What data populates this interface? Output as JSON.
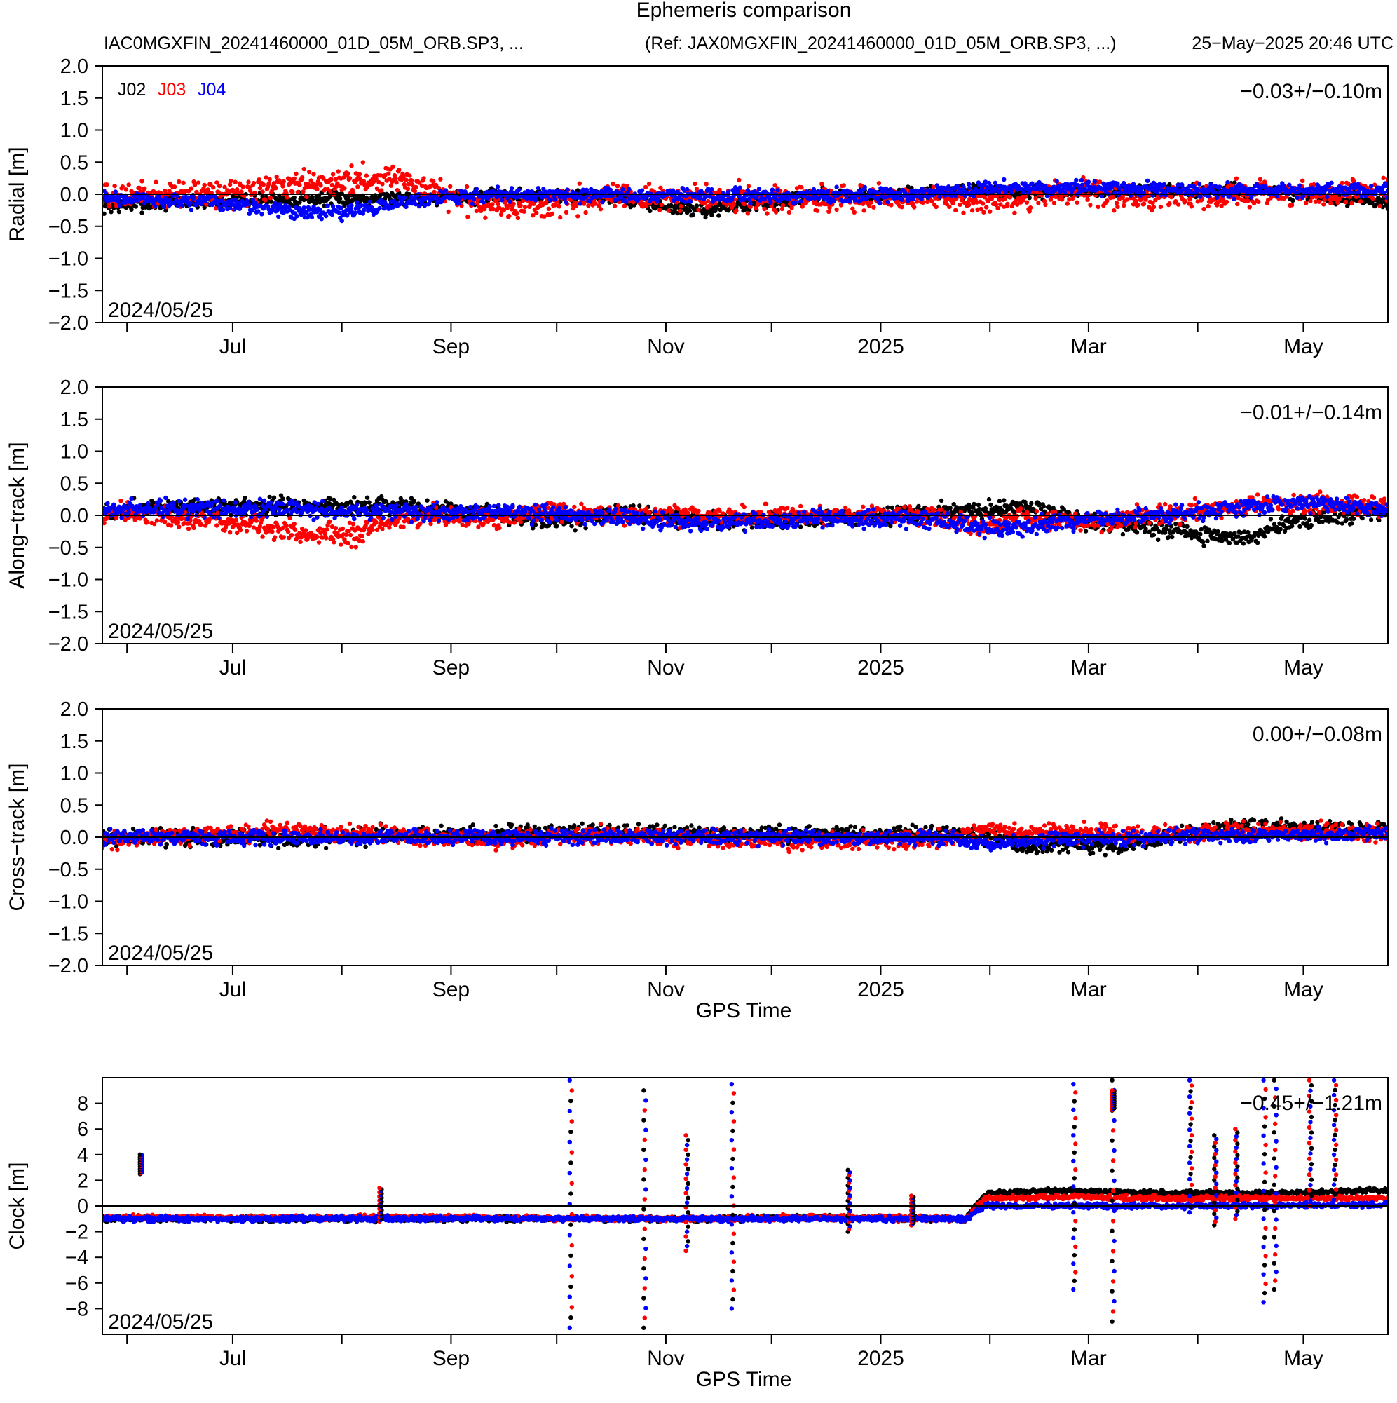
{
  "header": {
    "title": "Ephemeris comparison",
    "left_file": "IAC0MGXFIN_20241460000_01D_05M_ORB.SP3, ...",
    "ref_file": "(Ref: JAX0MGXFIN_20241460000_01D_05M_ORB.SP3, ...)",
    "generated": "25−May−2025 20:46 UTC"
  },
  "legend": [
    {
      "name": "J02",
      "color": "#000000"
    },
    {
      "name": "J03",
      "color": "#ff0000"
    },
    {
      "name": "J04",
      "color": "#0000ff"
    }
  ],
  "xaxis": {
    "xlabel": "GPS Time",
    "range": [
      "2024-05-25",
      "2025-05-25"
    ],
    "tick_labels": [
      "Jul",
      "Sep",
      "Nov",
      "2025",
      "Mar",
      "May"
    ],
    "label_dates": [
      "2024-07-01",
      "2024-09-01",
      "2024-11-01",
      "2025-01-01",
      "2025-03-01",
      "2025-05-01"
    ],
    "tick_dates": [
      "2024-06-01",
      "2024-07-01",
      "2024-08-01",
      "2024-09-01",
      "2024-10-01",
      "2024-11-01",
      "2024-12-01",
      "2025-01-01",
      "2025-02-01",
      "2025-03-01",
      "2025-04-01",
      "2025-05-01"
    ]
  },
  "chart_data": [
    {
      "type": "scatter",
      "ylabel": "Radial [m]",
      "ylim": [
        -2.0,
        2.0
      ],
      "yticks": [
        -2.0,
        -1.5,
        -1.0,
        -0.5,
        0.0,
        0.5,
        1.0,
        1.5,
        2.0
      ],
      "ytick_labels": [
        "−2.0",
        "−1.5",
        "−1.0",
        "−0.5",
        "0.0",
        "0.5",
        "1.0",
        "1.5",
        "2.0"
      ],
      "stat": "−0.03+/−0.10m",
      "start_label": "2024/05/25",
      "legend": true,
      "series": [
        {
          "name": "J02",
          "color": "#000000",
          "x": [
            "2024-05-25",
            "2024-06-15",
            "2024-07-15",
            "2024-08-15",
            "2024-09-15",
            "2024-10-15",
            "2024-11-01",
            "2024-11-10",
            "2024-11-20",
            "2024-12-15",
            "2025-01-15",
            "2025-02-15",
            "2025-03-15",
            "2025-04-15",
            "2025-05-01",
            "2025-05-10",
            "2025-05-24"
          ],
          "y": [
            -0.2,
            -0.12,
            -0.08,
            -0.05,
            -0.03,
            -0.02,
            -0.2,
            -0.25,
            -0.2,
            -0.02,
            0.02,
            0.03,
            0.05,
            0.05,
            0.0,
            -0.08,
            -0.1
          ],
          "spread": 0.08
        },
        {
          "name": "J03",
          "color": "#ff0000",
          "x": [
            "2024-05-25",
            "2024-06-15",
            "2024-07-05",
            "2024-07-20",
            "2024-08-05",
            "2024-08-15",
            "2024-08-25",
            "2024-09-15",
            "2024-10-01",
            "2024-10-20",
            "2024-11-15",
            "2024-12-15",
            "2025-01-15",
            "2025-02-05",
            "2025-02-25",
            "2025-03-15",
            "2025-04-15",
            "2025-05-24"
          ],
          "y": [
            -0.05,
            0.0,
            0.05,
            0.15,
            0.22,
            0.28,
            0.05,
            -0.2,
            -0.15,
            -0.05,
            -0.05,
            -0.05,
            -0.05,
            -0.1,
            0.05,
            -0.05,
            0.0,
            0.05
          ],
          "spread": 0.15
        },
        {
          "name": "J04",
          "color": "#0000ff",
          "x": [
            "2024-05-25",
            "2024-06-15",
            "2024-07-01",
            "2024-07-15",
            "2024-08-01",
            "2024-08-15",
            "2024-09-01",
            "2024-09-15",
            "2024-10-15",
            "2024-11-15",
            "2024-12-15",
            "2025-01-15",
            "2025-02-01",
            "2025-02-15",
            "2025-03-15",
            "2025-04-15",
            "2025-05-24"
          ],
          "y": [
            -0.05,
            -0.1,
            -0.15,
            -0.25,
            -0.3,
            -0.15,
            -0.05,
            0.0,
            -0.02,
            -0.02,
            -0.02,
            0.0,
            0.1,
            0.1,
            0.08,
            0.05,
            0.05
          ],
          "spread": 0.08
        }
      ]
    },
    {
      "type": "scatter",
      "ylabel": "Along−track [m]",
      "ylim": [
        -2.0,
        2.0
      ],
      "yticks": [
        -2.0,
        -1.5,
        -1.0,
        -0.5,
        0.0,
        0.5,
        1.0,
        1.5,
        2.0
      ],
      "ytick_labels": [
        "−2.0",
        "−1.5",
        "−1.0",
        "−0.5",
        "0.0",
        "0.5",
        "1.0",
        "1.5",
        "2.0"
      ],
      "stat": "−0.01+/−0.14m",
      "start_label": "2024/05/25",
      "legend": false,
      "series": [
        {
          "name": "J02",
          "color": "#000000",
          "x": [
            "2024-05-25",
            "2024-06-15",
            "2024-07-15",
            "2024-08-15",
            "2024-09-15",
            "2024-10-01",
            "2024-10-20",
            "2024-11-15",
            "2024-12-15",
            "2025-01-15",
            "2025-02-01",
            "2025-02-15",
            "2025-03-01",
            "2025-03-20",
            "2025-04-01",
            "2025-04-15",
            "2025-05-01",
            "2025-05-24"
          ],
          "y": [
            0.05,
            0.15,
            0.15,
            0.15,
            0.0,
            -0.1,
            0.05,
            -0.1,
            -0.05,
            0.05,
            0.1,
            0.1,
            -0.1,
            -0.2,
            -0.3,
            -0.35,
            -0.05,
            0.05
          ],
          "spread": 0.1
        },
        {
          "name": "J03",
          "color": "#ff0000",
          "x": [
            "2024-05-25",
            "2024-06-20",
            "2024-07-10",
            "2024-07-25",
            "2024-08-05",
            "2024-08-20",
            "2024-09-15",
            "2024-10-01",
            "2024-10-15",
            "2024-11-15",
            "2024-12-15",
            "2025-01-15",
            "2025-02-01",
            "2025-02-10",
            "2025-03-01",
            "2025-04-01",
            "2025-04-20",
            "2025-05-24"
          ],
          "y": [
            0.05,
            -0.05,
            -0.2,
            -0.28,
            -0.3,
            0.0,
            -0.05,
            0.1,
            0.0,
            0.0,
            0.0,
            0.0,
            -0.2,
            -0.05,
            -0.1,
            0.05,
            0.2,
            0.15
          ],
          "spread": 0.12
        },
        {
          "name": "J04",
          "color": "#0000ff",
          "x": [
            "2024-05-25",
            "2024-06-15",
            "2024-07-15",
            "2024-08-15",
            "2024-09-15",
            "2024-10-15",
            "2024-11-01",
            "2024-11-15",
            "2024-12-15",
            "2025-01-15",
            "2025-02-01",
            "2025-02-15",
            "2025-03-01",
            "2025-03-20",
            "2025-04-10",
            "2025-05-01",
            "2025-05-24"
          ],
          "y": [
            0.1,
            0.1,
            0.1,
            0.05,
            0.05,
            0.0,
            -0.1,
            -0.1,
            -0.05,
            -0.05,
            -0.2,
            -0.15,
            -0.05,
            0.0,
            0.1,
            0.2,
            0.1
          ],
          "spread": 0.1
        }
      ]
    },
    {
      "type": "scatter",
      "ylabel": "Cross−track [m]",
      "ylim": [
        -2.0,
        2.0
      ],
      "yticks": [
        -2.0,
        -1.5,
        -1.0,
        -0.5,
        0.0,
        0.5,
        1.0,
        1.5,
        2.0
      ],
      "ytick_labels": [
        "−2.0",
        "−1.5",
        "−1.0",
        "−0.5",
        "0.0",
        "0.5",
        "1.0",
        "1.5",
        "2.0"
      ],
      "stat": "0.00+/−0.08m",
      "start_label": "2024/05/25",
      "xlabel": "GPS Time",
      "legend": false,
      "series": [
        {
          "name": "J02",
          "color": "#000000",
          "x": [
            "2024-05-25",
            "2024-07-15",
            "2024-09-15",
            "2024-10-15",
            "2024-11-15",
            "2024-12-15",
            "2025-01-15",
            "2025-02-01",
            "2025-02-15",
            "2025-03-15",
            "2025-04-10",
            "2025-05-24"
          ],
          "y": [
            0.0,
            0.0,
            0.05,
            0.1,
            0.05,
            0.05,
            0.05,
            0.0,
            -0.15,
            -0.1,
            0.15,
            0.1
          ],
          "spread": 0.1
        },
        {
          "name": "J03",
          "color": "#ff0000",
          "x": [
            "2024-05-25",
            "2024-07-20",
            "2024-08-10",
            "2024-09-15",
            "2024-10-15",
            "2024-11-15",
            "2025-01-15",
            "2025-02-01",
            "2025-03-15",
            "2025-04-15",
            "2025-05-24"
          ],
          "y": [
            -0.05,
            0.1,
            0.05,
            -0.05,
            0.05,
            -0.05,
            -0.05,
            0.1,
            0.05,
            0.1,
            0.05
          ],
          "spread": 0.1
        },
        {
          "name": "J04",
          "color": "#0000ff",
          "x": [
            "2024-05-25",
            "2024-07-15",
            "2024-09-15",
            "2024-11-15",
            "2025-01-15",
            "2025-02-01",
            "2025-02-15",
            "2025-03-15",
            "2025-05-24"
          ],
          "y": [
            0.0,
            0.0,
            0.0,
            0.0,
            0.0,
            -0.1,
            -0.05,
            0.0,
            0.05
          ],
          "spread": 0.08
        }
      ]
    },
    {
      "type": "scatter",
      "ylabel": "Clock [m]",
      "ylim": [
        -10.0,
        10.0
      ],
      "yticks": [
        -8,
        -6,
        -4,
        -2,
        0,
        2,
        4,
        6,
        8
      ],
      "ytick_labels": [
        "−8",
        "−6",
        "−4",
        "−2",
        "0",
        "2",
        "4",
        "6",
        "8"
      ],
      "stat": "−0.45+/−1.21m",
      "start_label": "2024/05/25",
      "xlabel": "GPS Time",
      "legend": false,
      "series": [
        {
          "name": "J02",
          "color": "#000000",
          "x": [
            "2024-05-25",
            "2024-09-01",
            "2024-11-01",
            "2024-11-20",
            "2024-12-10",
            "2025-01-25",
            "2025-01-31",
            "2025-02-20",
            "2025-03-20",
            "2025-04-20",
            "2025-05-24"
          ],
          "y": [
            -1.0,
            -1.0,
            -1.0,
            -1.0,
            -0.9,
            -1.0,
            1.0,
            1.2,
            1.0,
            1.0,
            1.2
          ],
          "spread": 0.15
        },
        {
          "name": "J03",
          "color": "#ff0000",
          "x": [
            "2024-05-25",
            "2024-09-01",
            "2024-11-01",
            "2024-11-20",
            "2024-12-10",
            "2025-01-25",
            "2025-01-31",
            "2025-02-20",
            "2025-03-20",
            "2025-04-20",
            "2025-05-24"
          ],
          "y": [
            -0.9,
            -0.9,
            -1.0,
            -1.0,
            -0.9,
            -1.0,
            0.6,
            0.7,
            0.6,
            0.6,
            0.6
          ],
          "spread": 0.15
        },
        {
          "name": "J04",
          "color": "#0000ff",
          "x": [
            "2024-05-25",
            "2024-09-01",
            "2024-11-01",
            "2024-11-20",
            "2024-12-10",
            "2025-01-25",
            "2025-01-31",
            "2025-02-20",
            "2025-03-20",
            "2025-04-20",
            "2025-05-24"
          ],
          "y": [
            -1.0,
            -1.0,
            -1.0,
            -1.0,
            -1.0,
            -1.0,
            0.0,
            0.0,
            0.0,
            0.0,
            0.1
          ],
          "spread": 0.15
        }
      ],
      "excursions": [
        {
          "date": "2024-06-05",
          "from": 2.5,
          "to": 4.0
        },
        {
          "date": "2024-08-12",
          "from": -1.2,
          "to": 1.4
        },
        {
          "date": "2024-10-05",
          "from": -9.5,
          "to": 9.8
        },
        {
          "date": "2024-10-26",
          "from": -9.5,
          "to": 9.0
        },
        {
          "date": "2024-11-07",
          "from": -3.5,
          "to": 5.5
        },
        {
          "date": "2024-11-20",
          "from": -8.0,
          "to": 9.5
        },
        {
          "date": "2024-12-23",
          "from": -2.0,
          "to": 2.8
        },
        {
          "date": "2025-01-10",
          "from": -1.5,
          "to": 0.8
        },
        {
          "date": "2025-02-25",
          "from": -6.5,
          "to": 9.5
        },
        {
          "date": "2025-03-08",
          "from": -9.0,
          "to": 9.8
        },
        {
          "date": "2025-03-08",
          "from": 7.5,
          "to": 9.0
        },
        {
          "date": "2025-03-30",
          "from": -0.5,
          "to": 9.8
        },
        {
          "date": "2025-04-06",
          "from": -1.5,
          "to": 5.5
        },
        {
          "date": "2025-04-12",
          "from": -1.0,
          "to": 6.0
        },
        {
          "date": "2025-04-20",
          "from": -7.5,
          "to": 9.8
        },
        {
          "date": "2025-04-23",
          "from": -6.5,
          "to": 9.8
        },
        {
          "date": "2025-05-03",
          "from": 0.0,
          "to": 9.8
        },
        {
          "date": "2025-05-10",
          "from": 0.5,
          "to": 9.8
        }
      ]
    }
  ]
}
